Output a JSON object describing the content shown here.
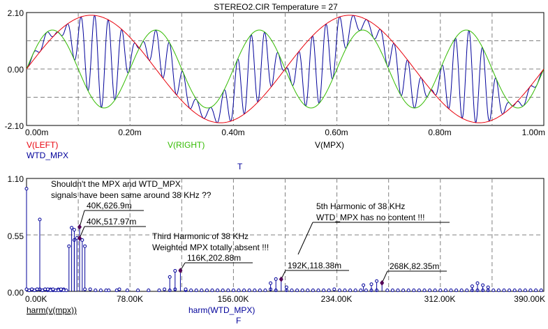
{
  "title": "STEREO2.CIR Temperature = 27",
  "chart_data": [
    {
      "type": "line",
      "xlabel": "T",
      "xlim": [
        0,
        1.0
      ],
      "ylim": [
        -2.1,
        2.1
      ],
      "x_tick_labels": [
        "0.00m",
        "0.20m",
        "0.40m",
        "0.60m",
        "0.80m",
        "1.00m"
      ],
      "y_tick_labels": [
        "2.10",
        "0.00",
        "-2.10"
      ],
      "legend": [
        "V(LEFT)",
        "V(RIGHT)",
        "V(MPX)",
        "WTD_MPX"
      ],
      "series": [
        {
          "name": "V(LEFT)",
          "color": "#e8000b",
          "amplitude": 2.0,
          "frequency_khz": 2.0,
          "phase_deg": 0
        },
        {
          "name": "V(RIGHT)",
          "color": "#33bb00",
          "amplitude": 1.45,
          "frequency_khz": 5.0,
          "phase_deg": 0
        },
        {
          "name": "V(MPX)",
          "color": "#00009a",
          "subcarrier_khz": 38.0,
          "pilot_khz": 19.0
        },
        {
          "name": "WTD_MPX",
          "color": "#00009a"
        }
      ]
    },
    {
      "type": "bar",
      "xlabel": "F",
      "xlim": [
        0,
        390
      ],
      "ylim": [
        0,
        1.1
      ],
      "x_unit": "K",
      "x_tick_labels": [
        "0.00K",
        "78.00K",
        "156.00K",
        "234.00K",
        "312.00K",
        "390.00K"
      ],
      "y_tick_labels": [
        "1.10",
        "0.55",
        "0.00"
      ],
      "legend": [
        "harm(v(mpx))",
        "harm(WTD_MPX)"
      ],
      "series": [
        {
          "name": "harm(v(mpx))",
          "points": [
            [
              0,
              1.0
            ],
            [
              2,
              0.01
            ],
            [
              4,
              0.02
            ],
            [
              6,
              0.01
            ],
            [
              8,
              0.02
            ],
            [
              10,
              0.02
            ],
            [
              12,
              0.01
            ],
            [
              14,
              0.02
            ],
            [
              16,
              0.01
            ],
            [
              18,
              0.02
            ],
            [
              20,
              0.01
            ],
            [
              22,
              0.01
            ],
            [
              24,
              0.02
            ],
            [
              26,
              0.01
            ],
            [
              28,
              0.02
            ],
            [
              32,
              0.44
            ],
            [
              34,
              0.62
            ],
            [
              36,
              0.5
            ],
            [
              38,
              0.52
            ],
            [
              40,
              0.627
            ],
            [
              42,
              0.5
            ],
            [
              44,
              0.44
            ],
            [
              48,
              0.02
            ],
            [
              60,
              0.01
            ],
            [
              70,
              0.02
            ]
          ]
        },
        {
          "name": "harm(WTD_MPX)",
          "points": [
            [
              0,
              0.02
            ],
            [
              2,
              0.01
            ],
            [
              4,
              0.02
            ],
            [
              6,
              0.01
            ],
            [
              8,
              0.02
            ],
            [
              10,
              0.7
            ],
            [
              12,
              0.01
            ],
            [
              14,
              0.02
            ],
            [
              16,
              0.02
            ],
            [
              18,
              0.01
            ],
            [
              20,
              0.02
            ],
            [
              22,
              0.01
            ],
            [
              24,
              0.01
            ],
            [
              26,
              0.02
            ],
            [
              28,
              0.01
            ],
            [
              30,
              0.01
            ],
            [
              36,
              0.6
            ],
            [
              40,
              0.518
            ],
            [
              44,
              0.02
            ],
            [
              52,
              0.01
            ],
            [
              56,
              0.01
            ],
            [
              62,
              0.01
            ],
            [
              68,
              0.01
            ],
            [
              76,
              0.01
            ],
            [
              84,
              0.01
            ],
            [
              92,
              0.01
            ],
            [
              100,
              0.01
            ],
            [
              104,
              0.02
            ],
            [
              108,
              0.01
            ],
            [
              112,
              0.02
            ],
            [
              120,
              0.01
            ],
            [
              124,
              0.01
            ],
            [
              128,
              0.01
            ],
            [
              132,
              0.01
            ],
            [
              136,
              0.01
            ],
            [
              140,
              0.01
            ],
            [
              144,
              0.01
            ],
            [
              148,
              0.01
            ],
            [
              152,
              0.01
            ],
            [
              156,
              0.01
            ],
            [
              160,
              0.01
            ],
            [
              164,
              0.01
            ],
            [
              168,
              0.01
            ],
            [
              172,
              0.01
            ],
            [
              176,
              0.01
            ],
            [
              180,
              0.01
            ],
            [
              184,
              0.02
            ],
            [
              188,
              0.01
            ],
            [
              196,
              0.01
            ],
            [
              200,
              0.01
            ],
            [
              204,
              0.01
            ],
            [
              208,
              0.01
            ],
            [
              212,
              0.01
            ],
            [
              216,
              0.01
            ],
            [
              220,
              0.01
            ],
            [
              224,
              0.01
            ],
            [
              228,
              0.01
            ],
            [
              232,
              0.02
            ],
            [
              236,
              0.01
            ],
            [
              240,
              0.01
            ],
            [
              244,
              0.01
            ],
            [
              248,
              0.01
            ],
            [
              252,
              0.01
            ],
            [
              256,
              0.01
            ],
            [
              260,
              0.01
            ],
            [
              264,
              0.01
            ],
            [
              272,
              0.01
            ],
            [
              276,
              0.01
            ],
            [
              280,
              0.01
            ],
            [
              284,
              0.01
            ],
            [
              288,
              0.01
            ],
            [
              292,
              0.01
            ],
            [
              296,
              0.01
            ],
            [
              300,
              0.01
            ],
            [
              304,
              0.01
            ],
            [
              308,
              0.01
            ],
            [
              312,
              0.01
            ],
            [
              316,
              0.01
            ],
            [
              320,
              0.01
            ],
            [
              324,
              0.01
            ],
            [
              328,
              0.01
            ],
            [
              332,
              0.01
            ],
            [
              336,
              0.01
            ],
            [
              340,
              0.01
            ],
            [
              344,
              0.01
            ],
            [
              348,
              0.01
            ],
            [
              352,
              0.01
            ],
            [
              356,
              0.01
            ],
            [
              360,
              0.01
            ],
            [
              364,
              0.01
            ],
            [
              368,
              0.01
            ],
            [
              372,
              0.01
            ],
            [
              376,
              0.01
            ],
            [
              380,
              0.01
            ],
            [
              384,
              0.01
            ],
            [
              388,
              0.01
            ]
          ]
        },
        {
          "name": "harm(WTD_MPX)",
          "points": [
            [
              108,
              0.14
            ],
            [
              112,
              0.2
            ],
            [
              116,
              0.203
            ],
            [
              120,
              0.02
            ],
            [
              184,
              0.08
            ],
            [
              188,
              0.12
            ],
            [
              192,
              0.118
            ],
            [
              196,
              0.04
            ],
            [
              254,
              0.06
            ],
            [
              260,
              0.07
            ],
            [
              264,
              0.1
            ],
            [
              268,
              0.082
            ],
            [
              336,
              0.05
            ],
            [
              340,
              0.08
            ],
            [
              344,
              0.06
            ],
            [
              348,
              0.04
            ]
          ]
        }
      ],
      "annotations": [
        {
          "id": "question",
          "text": [
            "Shouldn't the MPX and WTD_MPX",
            "signals have been same around 38 KHz ??"
          ]
        },
        {
          "id": "p40a",
          "text": "40K,626.9m",
          "x": 40,
          "y": 0.627
        },
        {
          "id": "p40b",
          "text": "40K,517.97m",
          "x": 40,
          "y": 0.518
        },
        {
          "id": "third",
          "text": [
            "Third Harmonic of 38 KHz",
            "Weighted MPX totally absent !!!"
          ]
        },
        {
          "id": "p116",
          "text": "116K,202.88m",
          "x": 116,
          "y": 0.203
        },
        {
          "id": "fifth",
          "text": [
            "5th Harmonic of 38 KHz",
            "WTD_MPX has no content !!!"
          ]
        },
        {
          "id": "p192",
          "text": "192K,118.38m",
          "x": 192,
          "y": 0.118
        },
        {
          "id": "p268",
          "text": "268K,82.35m",
          "x": 268,
          "y": 0.082
        }
      ]
    }
  ],
  "colors": {
    "background": "#ffffff",
    "frame": "#000000",
    "grid": "#808080",
    "left": "#e8000b",
    "right": "#33bb00",
    "mpx": "#00009a",
    "marker": "#550055"
  }
}
